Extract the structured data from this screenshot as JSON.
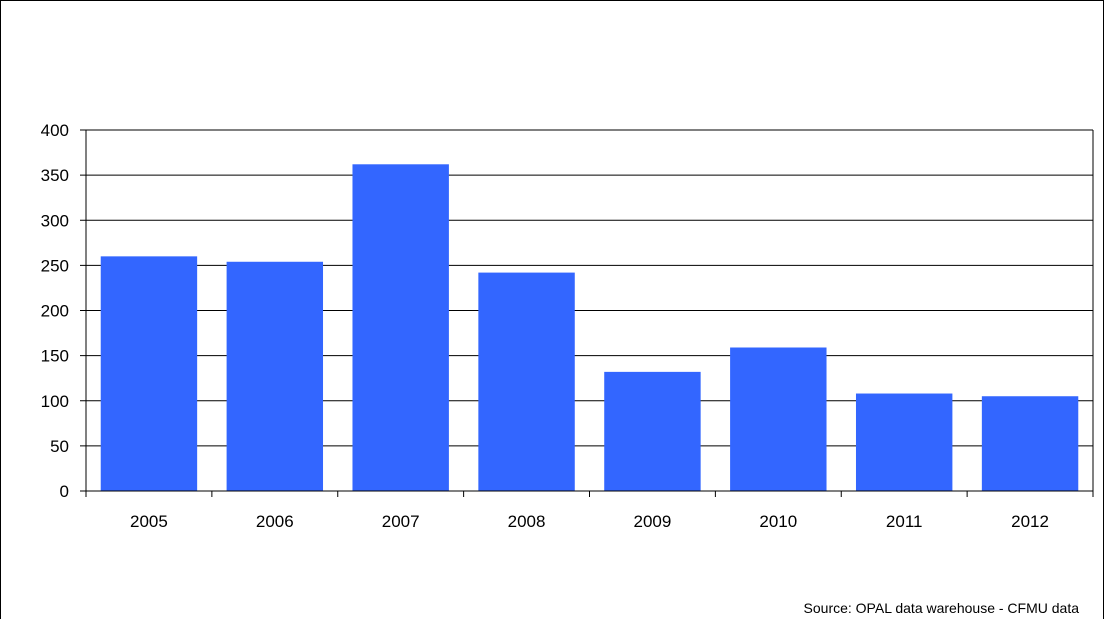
{
  "chart_data": {
    "type": "bar",
    "title": "",
    "xlabel": "",
    "ylabel": "",
    "categories": [
      "2005",
      "2006",
      "2007",
      "2008",
      "2009",
      "2010",
      "2011",
      "2012"
    ],
    "values": [
      260,
      254,
      362,
      242,
      132,
      159,
      108,
      105
    ],
    "ylim": [
      0,
      400
    ],
    "y_ticks": [
      0,
      50,
      100,
      150,
      200,
      250,
      300,
      350,
      400
    ],
    "y_tick_labels": [
      "0",
      "50",
      "100",
      "150",
      "200",
      "250",
      "300",
      "350",
      "400"
    ],
    "grid": true,
    "bar_color": "#3366FF",
    "legend": "none",
    "annotation": "Source: OPAL data warehouse - CFMU data"
  }
}
